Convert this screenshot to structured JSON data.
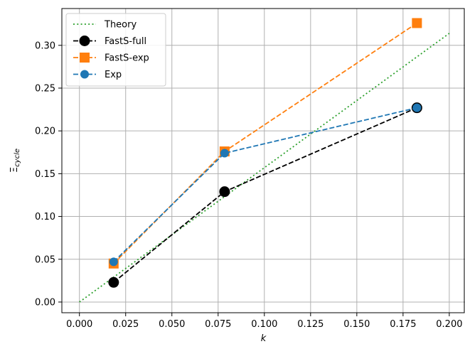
{
  "chart_data": {
    "type": "line",
    "xlabel": "k",
    "ylabel": "Ξ_cycle",
    "xlim": [
      -0.0095,
      0.2085
    ],
    "ylim": [
      -0.0125,
      0.343
    ],
    "x_ticks": [
      0.0,
      0.025,
      0.05,
      0.075,
      0.1,
      0.125,
      0.15,
      0.175,
      0.2
    ],
    "x_tick_labels": [
      "0.000",
      "0.025",
      "0.050",
      "0.075",
      "0.100",
      "0.125",
      "0.150",
      "0.175",
      "0.200"
    ],
    "y_ticks": [
      0.0,
      0.05,
      0.1,
      0.15,
      0.2,
      0.25,
      0.3
    ],
    "y_tick_labels": [
      "0.00",
      "0.05",
      "0.10",
      "0.15",
      "0.20",
      "0.25",
      "0.30"
    ],
    "grid": true,
    "legend_position": "top-left",
    "series": [
      {
        "name": "Theory",
        "x": [
          0.0,
          0.2
        ],
        "y": [
          0.0,
          0.314
        ],
        "color": "#2ca02c",
        "line": "dotted",
        "marker": "none"
      },
      {
        "name": "FastS-full",
        "x": [
          0.0185,
          0.0785,
          0.1825
        ],
        "y": [
          0.023,
          0.129,
          0.227
        ],
        "color": "#000000",
        "line": "dashed",
        "marker": "circle-large"
      },
      {
        "name": "FastS-exp",
        "x": [
          0.0185,
          0.0785,
          0.1825
        ],
        "y": [
          0.045,
          0.176,
          0.326
        ],
        "color": "#ff7f0e",
        "line": "dashed",
        "marker": "square"
      },
      {
        "name": "Exp",
        "x": [
          0.0185,
          0.0785,
          0.1825
        ],
        "y": [
          0.047,
          0.174,
          0.227
        ],
        "color": "#1f77b4",
        "line": "dashed",
        "marker": "circle"
      }
    ]
  }
}
